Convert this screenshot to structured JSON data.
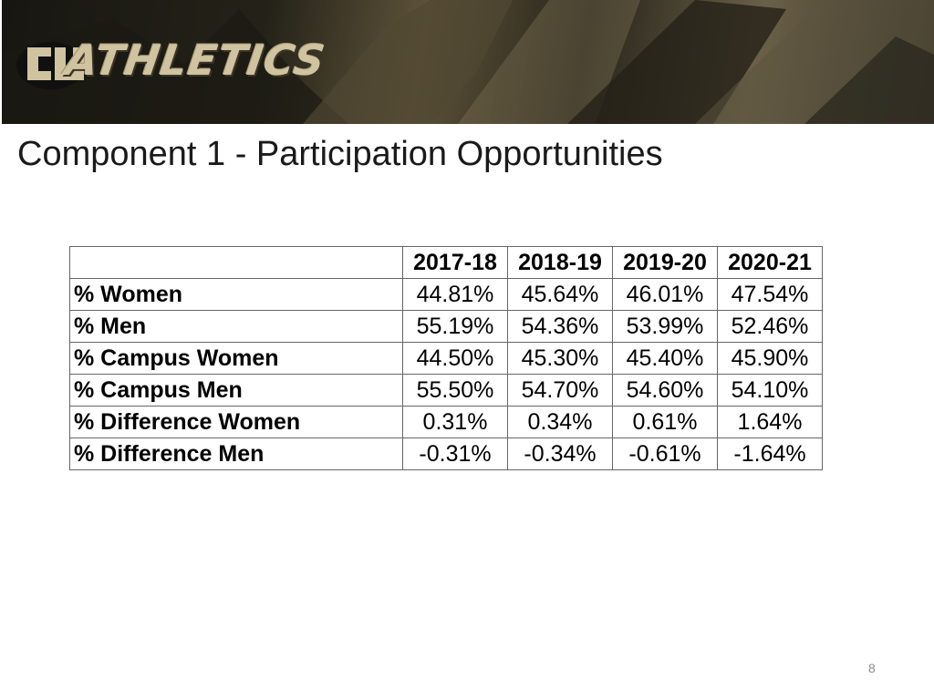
{
  "banner": {
    "logo_text": "ATHLETICS"
  },
  "slide": {
    "title": "Component 1 - Participation Opportunities",
    "page_number": "8"
  },
  "table": {
    "headers": [
      "",
      "2017-18",
      "2018-19",
      "2019-20",
      "2020-21"
    ],
    "rows": [
      {
        "label": "% Women",
        "values": [
          "44.81%",
          "45.64%",
          "46.01%",
          "47.54%"
        ]
      },
      {
        "label": "% Men",
        "values": [
          "55.19%",
          "54.36%",
          "53.99%",
          "52.46%"
        ]
      },
      {
        "label": "% Campus Women",
        "values": [
          "44.50%",
          "45.30%",
          "45.40%",
          "45.90%"
        ]
      },
      {
        "label": "% Campus Men",
        "values": [
          "55.50%",
          "54.70%",
          "54.60%",
          "54.10%"
        ]
      },
      {
        "label": "% Difference Women",
        "values": [
          "0.31%",
          "0.34%",
          "0.61%",
          "1.64%"
        ]
      },
      {
        "label": "% Difference Men",
        "values": [
          "-0.31%",
          "-0.34%",
          "-0.61%",
          "-1.64%"
        ]
      }
    ]
  },
  "colors": {
    "banner_gold": "#cfc3a0",
    "title_text": "#1a1a1a",
    "page_number": "#8a8a8a"
  }
}
